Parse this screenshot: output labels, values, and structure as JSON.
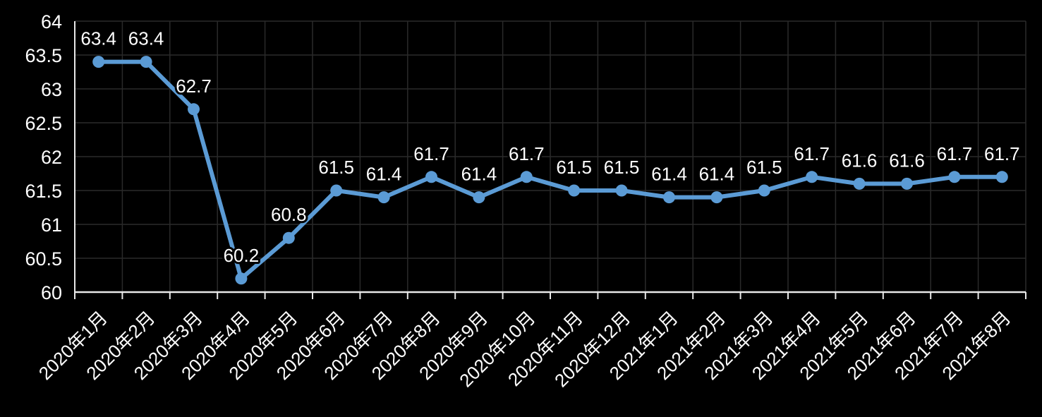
{
  "chart_data": {
    "type": "line",
    "title": "",
    "xlabel": "",
    "ylabel": "",
    "categories": [
      "2020年1月",
      "2020年2月",
      "2020年3月",
      "2020年4月",
      "2020年5月",
      "2020年6月",
      "2020年7月",
      "2020年8月",
      "2020年9月",
      "2020年10月",
      "2020年11月",
      "2020年12月",
      "2021年1月",
      "2021年2月",
      "2021年3月",
      "2021年4月",
      "2021年5月",
      "2021年6月",
      "2021年7月",
      "2021年8月"
    ],
    "values": [
      63.4,
      63.4,
      62.7,
      60.2,
      60.8,
      61.5,
      61.4,
      61.7,
      61.4,
      61.7,
      61.5,
      61.5,
      61.4,
      61.4,
      61.5,
      61.7,
      61.6,
      61.6,
      61.7,
      61.7
    ],
    "data_labels": [
      "63.4",
      "63.4",
      "62.7",
      "60.2",
      "60.8",
      "61.5",
      "61.4",
      "61.7",
      "61.4",
      "61.7",
      "61.5",
      "61.5",
      "61.4",
      "61.4",
      "61.5",
      "61.7",
      "61.6",
      "61.6",
      "61.7",
      "61.7"
    ],
    "ylim": [
      60,
      64
    ],
    "yticks": [
      {
        "value": 60,
        "label": "60"
      },
      {
        "value": 60.5,
        "label": "60.5"
      },
      {
        "value": 61,
        "label": "61"
      },
      {
        "value": 61.5,
        "label": "61.5"
      },
      {
        "value": 62,
        "label": "62"
      },
      {
        "value": 62.5,
        "label": "62.5"
      },
      {
        "value": 63,
        "label": "63"
      },
      {
        "value": 63.5,
        "label": "63.5"
      },
      {
        "value": 64,
        "label": "64"
      }
    ],
    "grid": true,
    "legend_position": "none",
    "marker": "circle",
    "colors": {
      "background": "#000000",
      "line": "#5B9BD5",
      "marker": "#5B9BD5",
      "gridline": "#2A2A2A",
      "axis": "#E8E8E8",
      "text": "#FFFFFF",
      "label_halo": "#000000"
    }
  }
}
